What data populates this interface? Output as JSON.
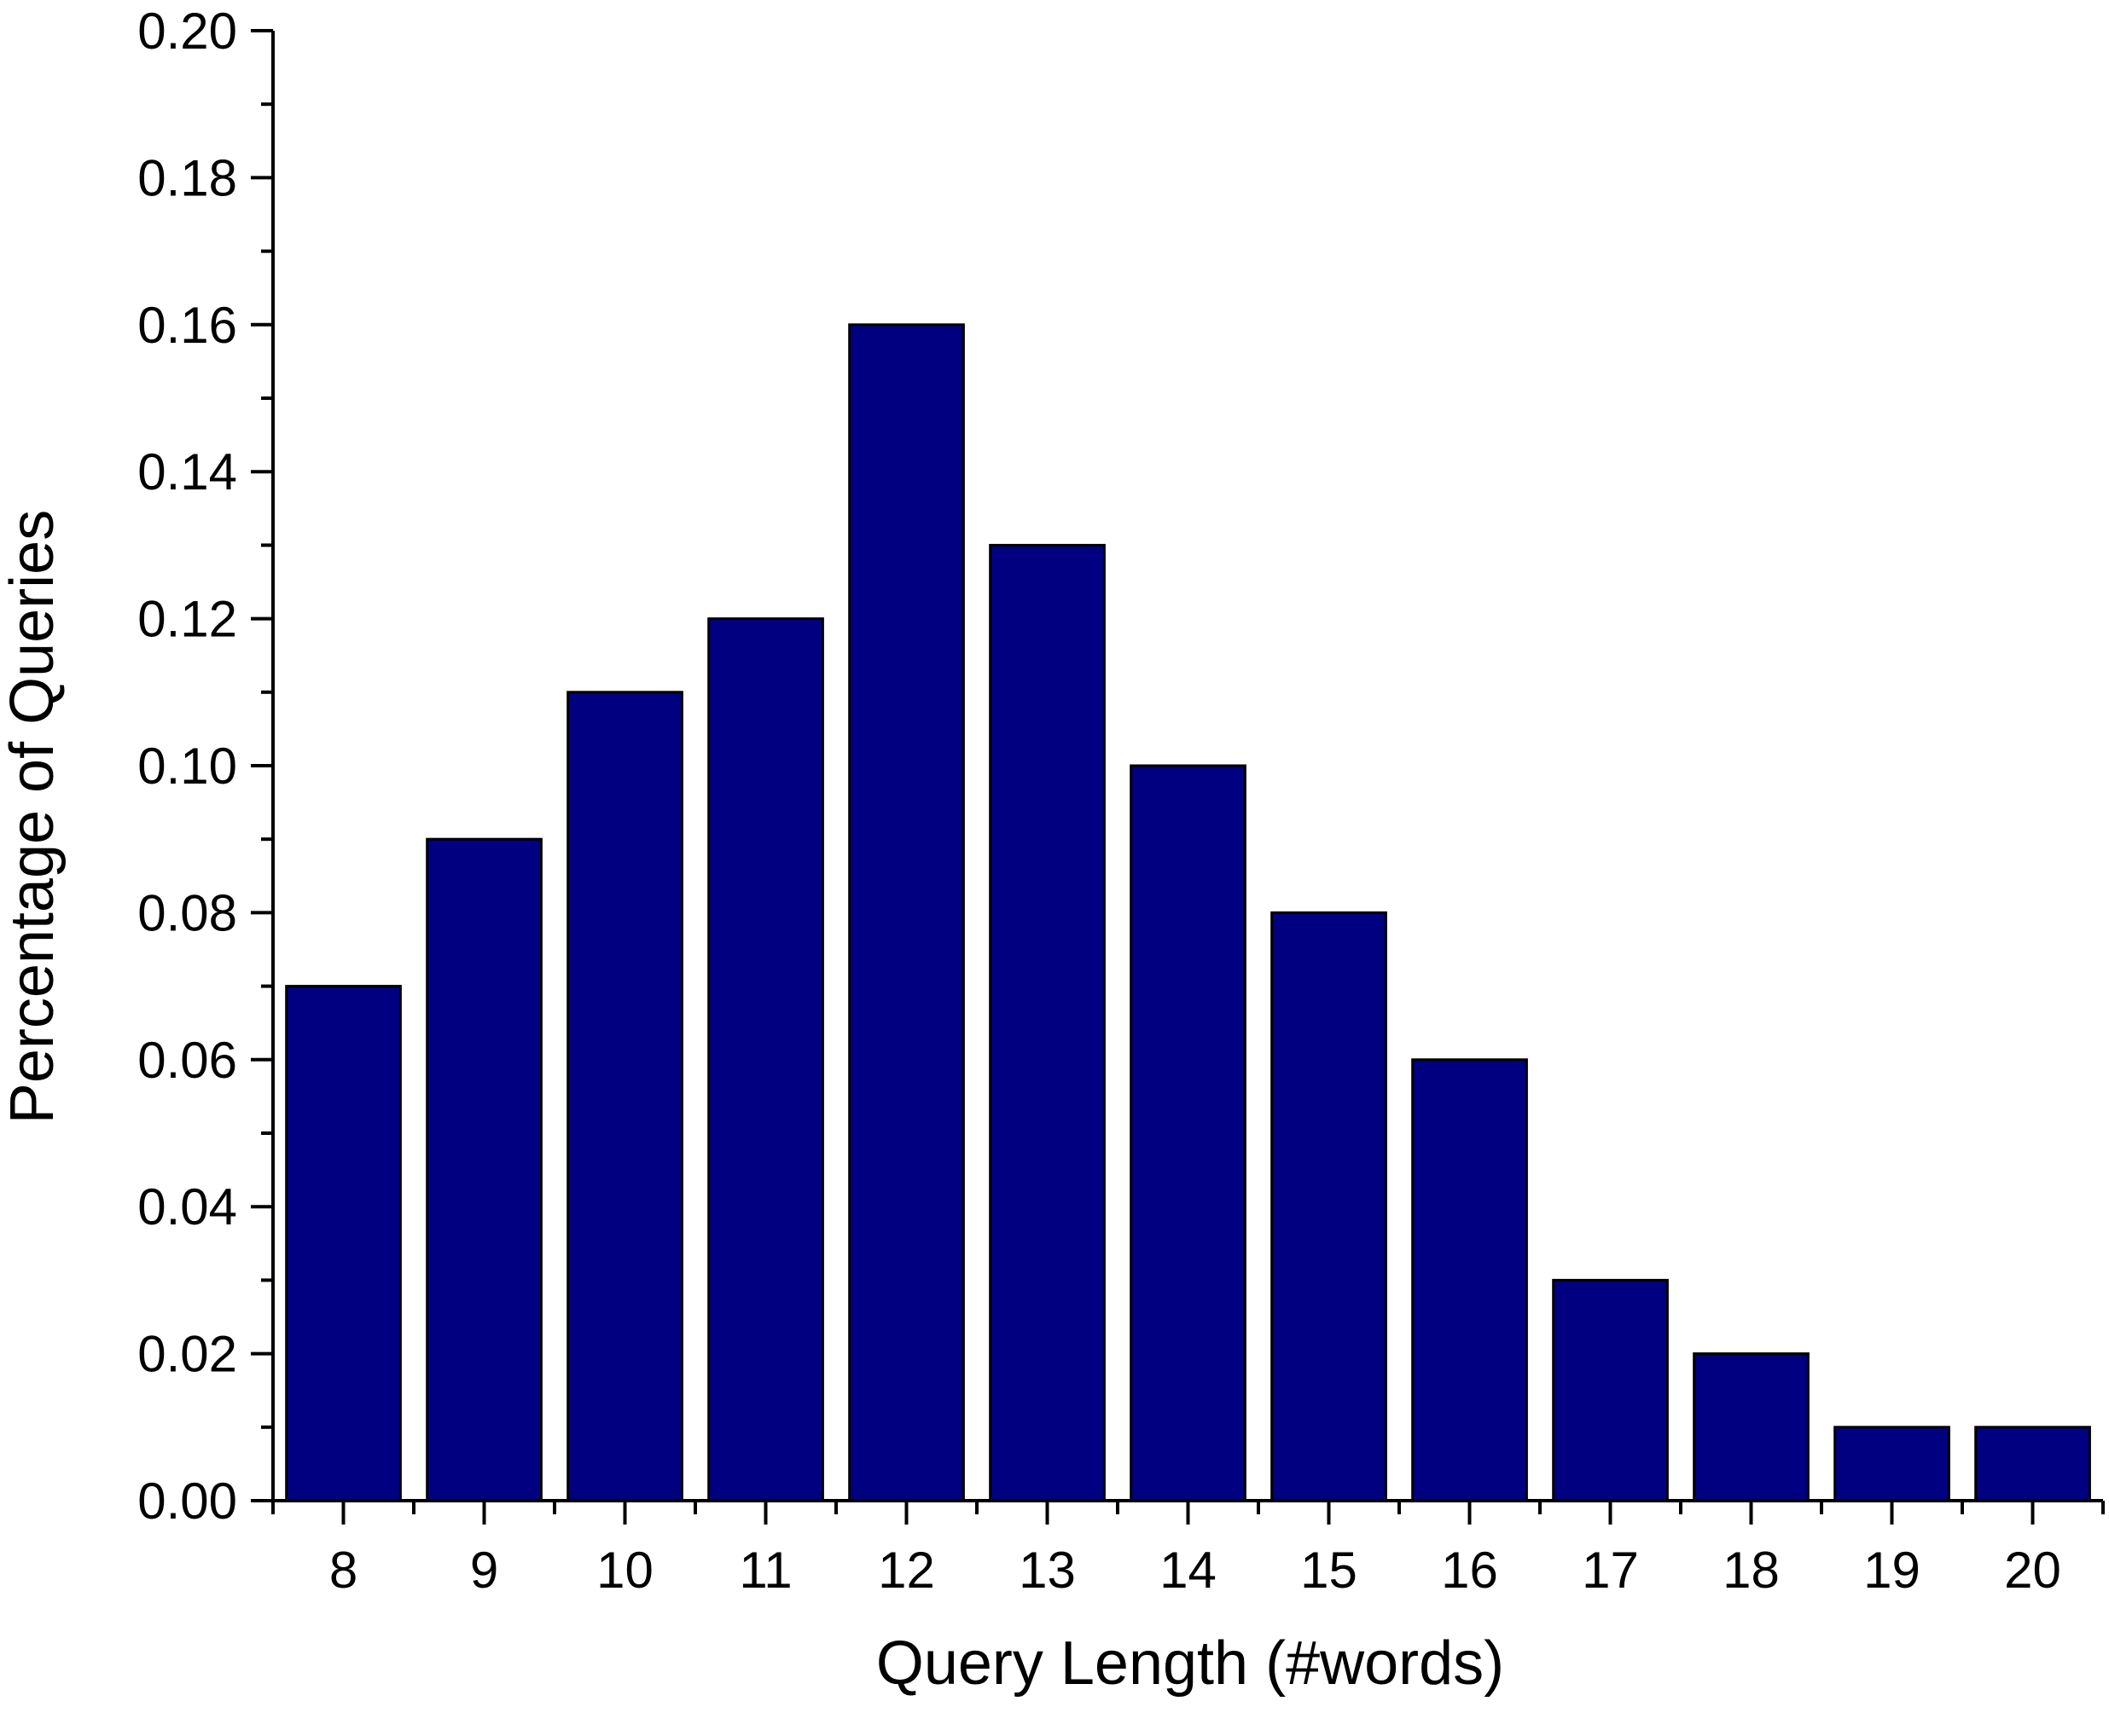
{
  "chart_data": {
    "type": "bar",
    "title": "",
    "xlabel": "Query Length (#words)",
    "ylabel": "Percentage of Queries",
    "categories": [
      "8",
      "9",
      "10",
      "11",
      "12",
      "13",
      "14",
      "15",
      "16",
      "17",
      "18",
      "19",
      "20"
    ],
    "values": [
      0.07,
      0.09,
      0.11,
      0.12,
      0.16,
      0.13,
      0.1,
      0.08,
      0.06,
      0.03,
      0.02,
      0.01,
      0.01
    ],
    "ylim": [
      0,
      0.2
    ],
    "y_ticks": [
      "0.00",
      "0.02",
      "0.04",
      "0.06",
      "0.08",
      "0.10",
      "0.12",
      "0.14",
      "0.16",
      "0.18",
      "0.20"
    ],
    "grid": false,
    "legend": "none",
    "bar_color": "#000080",
    "bar_edge_color": "#000000"
  }
}
